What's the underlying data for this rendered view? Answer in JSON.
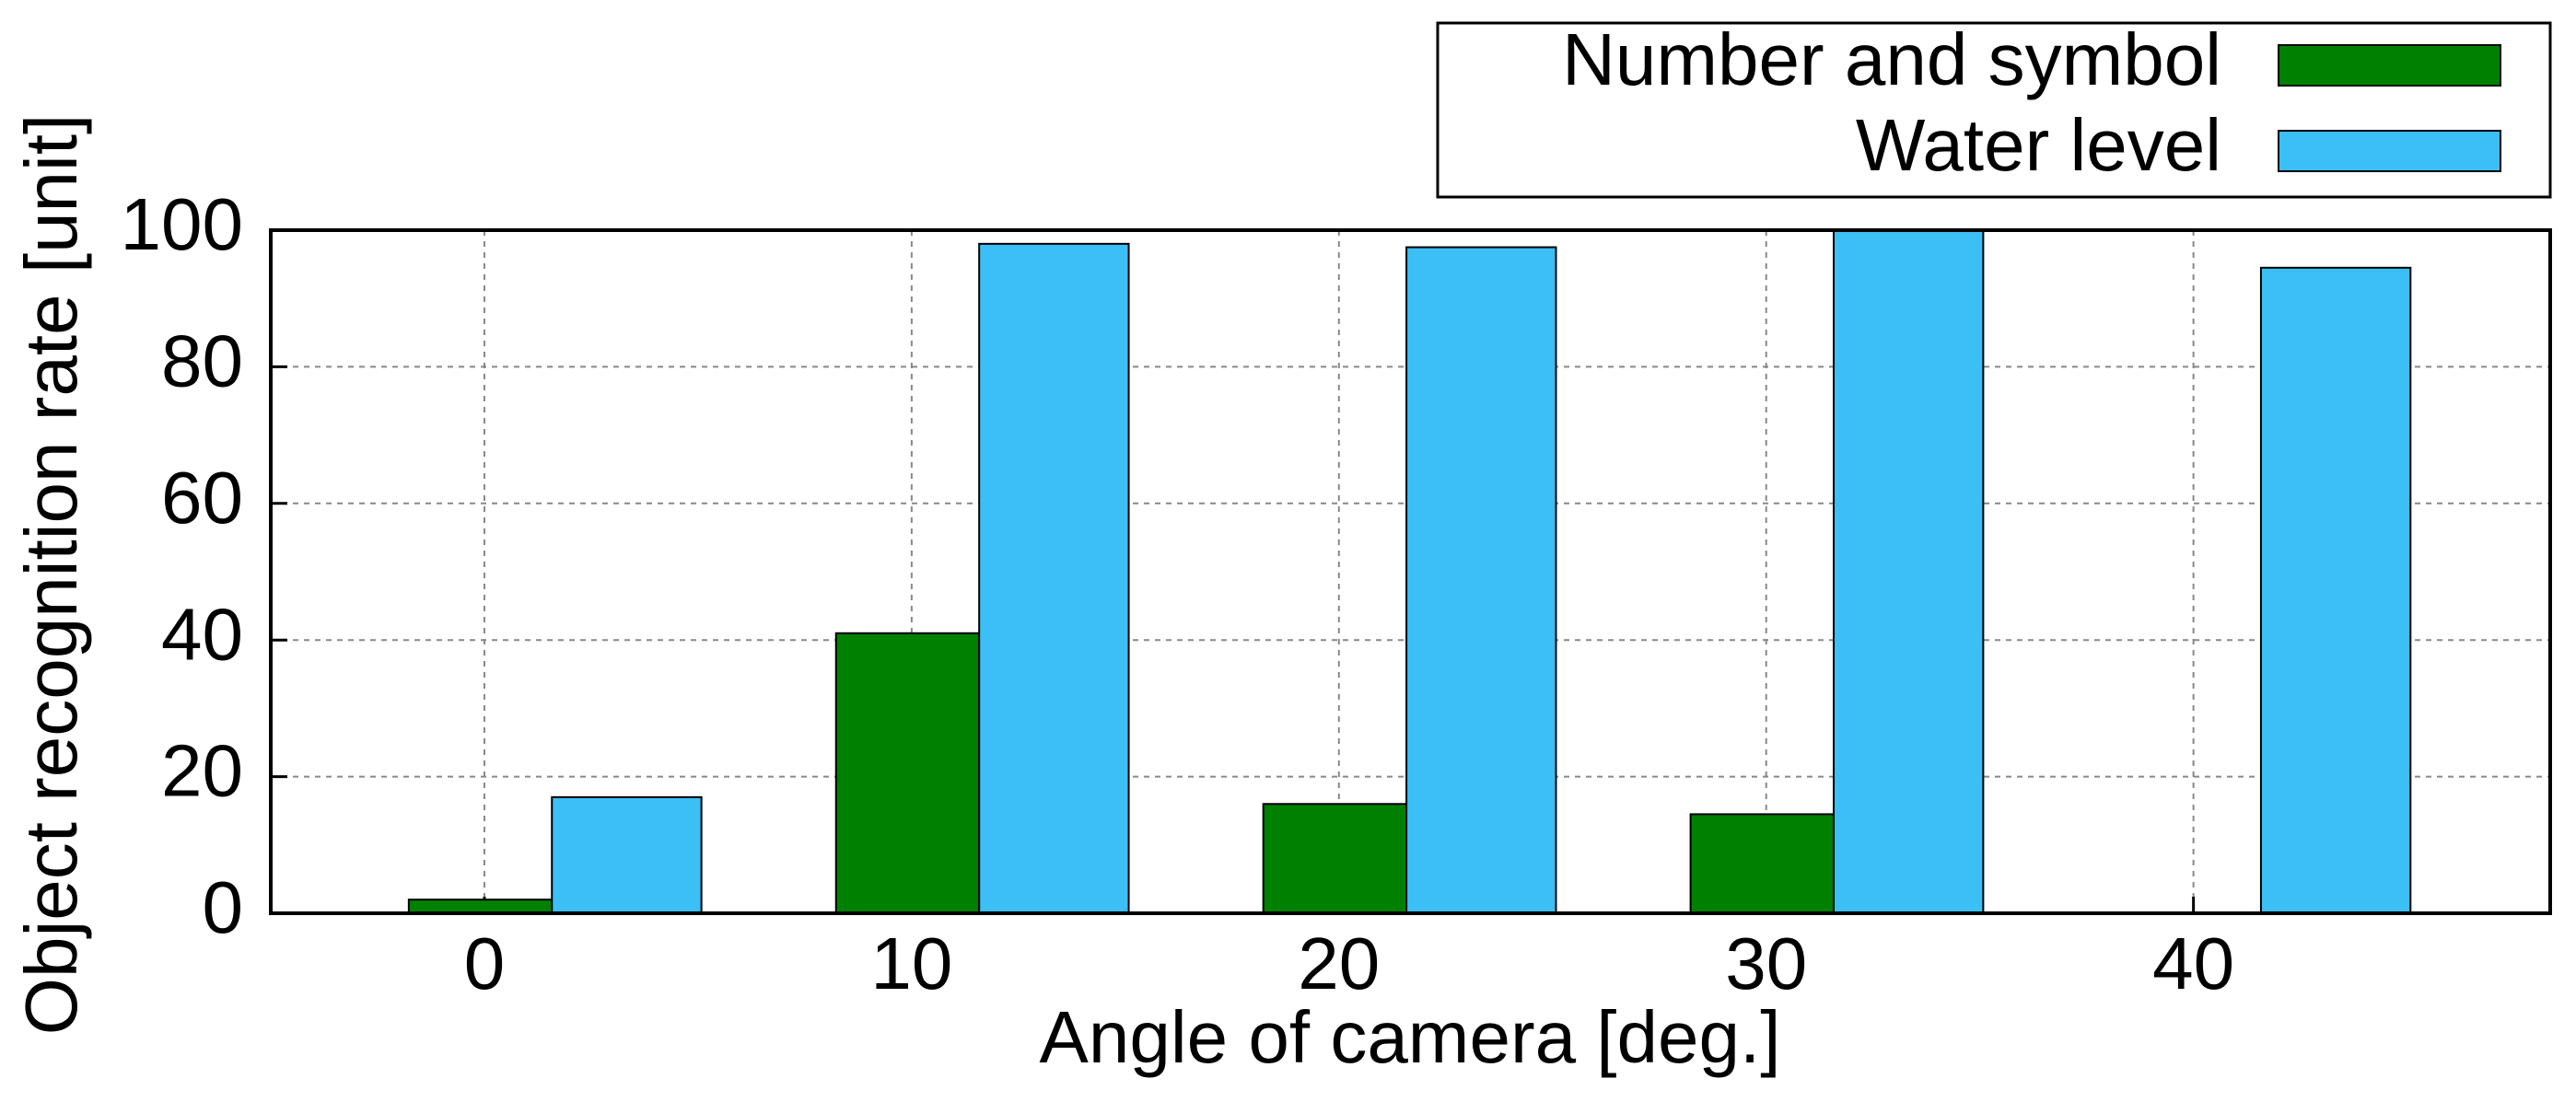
{
  "chart_data": {
    "type": "bar",
    "x_label": "Angle of camera [deg.]",
    "y_label": "Object recognition rate [unit]",
    "x": [
      0,
      10,
      20,
      30,
      40
    ],
    "series": [
      {
        "name": "Number and symbol",
        "color": "#008000",
        "values": [
          2,
          41,
          16,
          14.5,
          0
        ]
      },
      {
        "name": "Water level",
        "color": "#3bbff5",
        "values": [
          17,
          98,
          97.5,
          100,
          94.5
        ]
      }
    ],
    "xlim": [
      -5,
      48.35
    ],
    "xticks": [
      0,
      10,
      20,
      30,
      40
    ],
    "ylim": [
      0,
      100
    ],
    "yticks": [
      0,
      20,
      40,
      60,
      80,
      100
    ],
    "grid": true,
    "legend": "top-right"
  }
}
